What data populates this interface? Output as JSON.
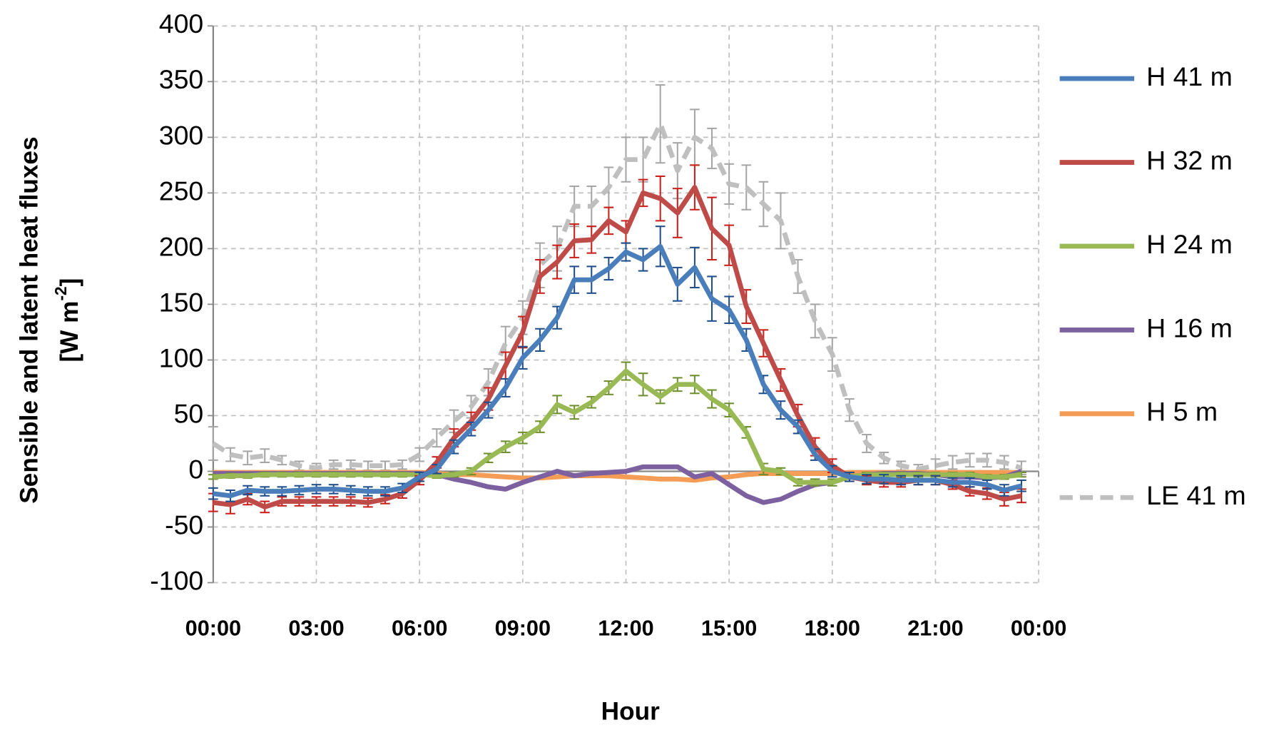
{
  "chart_data": {
    "type": "line",
    "ylabel": "Sensible and latent heat fluxes",
    "ylabel_line2": [
      "[W m",
      "-2",
      "]"
    ],
    "xlabel": "Hour",
    "x": [
      0,
      0.5,
      1,
      1.5,
      2,
      2.5,
      3,
      3.5,
      4,
      4.5,
      5,
      5.5,
      6,
      6.5,
      7,
      7.5,
      8,
      8.5,
      9,
      9.5,
      10,
      10.5,
      11,
      11.5,
      12,
      12.5,
      13,
      13.5,
      14,
      14.5,
      15,
      15.5,
      16,
      16.5,
      17,
      17.5,
      18,
      18.5,
      19,
      19.5,
      20,
      20.5,
      21,
      21.5,
      22,
      22.5,
      23,
      23.5
    ],
    "xlim": [
      0,
      24
    ],
    "xticks": [
      {
        "value": 0,
        "label": "00:00"
      },
      {
        "value": 3,
        "label": "03:00"
      },
      {
        "value": 6,
        "label": "06:00"
      },
      {
        "value": 9,
        "label": "09:00"
      },
      {
        "value": 12,
        "label": "12:00"
      },
      {
        "value": 15,
        "label": "15:00"
      },
      {
        "value": 18,
        "label": "18:00"
      },
      {
        "value": 21,
        "label": "21:00"
      },
      {
        "value": 24,
        "label": "00:00"
      }
    ],
    "ylim": [
      -100,
      400
    ],
    "yticks": [
      -100,
      -50,
      0,
      50,
      100,
      150,
      200,
      250,
      300,
      350,
      400
    ],
    "grid": true,
    "legend": "right",
    "series": [
      {
        "name": "H 41 m",
        "color": "#4a7ebb",
        "error_color": "#1f4e8c",
        "values": [
          -20,
          -22,
          -17,
          -18,
          -18,
          -17,
          -16,
          -16,
          -17,
          -18,
          -18,
          -15,
          -5,
          2,
          22,
          38,
          55,
          75,
          102,
          118,
          138,
          172,
          172,
          182,
          197,
          190,
          202,
          168,
          183,
          155,
          145,
          118,
          78,
          55,
          40,
          15,
          0,
          -5,
          -7,
          -7,
          -8,
          -8,
          -8,
          -10,
          -10,
          -12,
          -17,
          -13
        ],
        "errors": [
          5,
          5,
          4,
          4,
          4,
          4,
          4,
          4,
          4,
          4,
          4,
          4,
          4,
          4,
          6,
          6,
          7,
          8,
          10,
          10,
          10,
          12,
          12,
          10,
          8,
          10,
          18,
          15,
          18,
          20,
          12,
          10,
          8,
          8,
          6,
          5,
          5,
          4,
          4,
          4,
          4,
          4,
          4,
          4,
          4,
          4,
          5,
          5
        ]
      },
      {
        "name": "H 32 m",
        "color": "#be4b48",
        "error_color": "#cc1f1a",
        "values": [
          -28,
          -30,
          -25,
          -32,
          -27,
          -27,
          -27,
          -27,
          -27,
          -28,
          -25,
          -20,
          -8,
          8,
          30,
          45,
          65,
          95,
          125,
          175,
          188,
          207,
          208,
          225,
          215,
          250,
          245,
          232,
          255,
          218,
          203,
          148,
          115,
          82,
          50,
          22,
          5,
          -5,
          -8,
          -10,
          -10,
          -8,
          -8,
          -12,
          -18,
          -20,
          -25,
          -22
        ],
        "errors": [
          8,
          8,
          5,
          5,
          4,
          4,
          4,
          4,
          4,
          4,
          4,
          4,
          4,
          5,
          8,
          8,
          10,
          12,
          14,
          15,
          15,
          15,
          12,
          12,
          10,
          12,
          20,
          22,
          20,
          28,
          18,
          15,
          12,
          10,
          10,
          8,
          6,
          4,
          4,
          4,
          4,
          4,
          4,
          4,
          4,
          5,
          6,
          6
        ]
      },
      {
        "name": "H 24 m",
        "color": "#98b954",
        "error_color": "#6f8f2e",
        "values": [
          -5,
          -4,
          -4,
          -3,
          -3,
          -3,
          -3,
          -3,
          -3,
          -3,
          -3,
          -3,
          -3,
          -4,
          -3,
          0,
          12,
          22,
          30,
          40,
          60,
          53,
          62,
          75,
          90,
          78,
          67,
          78,
          78,
          65,
          55,
          35,
          2,
          0,
          -10,
          -10,
          -10,
          -5,
          -3,
          -3,
          -3,
          -3,
          -3,
          -3,
          -3,
          -5,
          -5,
          -3
        ],
        "errors": [
          2,
          2,
          2,
          2,
          2,
          2,
          2,
          2,
          2,
          2,
          2,
          2,
          2,
          2,
          2,
          3,
          4,
          5,
          5,
          5,
          8,
          6,
          5,
          6,
          8,
          10,
          6,
          6,
          8,
          8,
          6,
          5,
          5,
          3,
          3,
          3,
          3,
          2,
          2,
          2,
          2,
          2,
          2,
          2,
          2,
          2,
          2,
          2
        ]
      },
      {
        "name": "H 16 m",
        "color": "#7d60a0",
        "values": [
          -2,
          -2,
          -2,
          -2,
          -2,
          -2,
          -2,
          -2,
          -2,
          -2,
          -2,
          -2,
          -2,
          -3,
          -7,
          -10,
          -14,
          -16,
          -10,
          -5,
          0,
          -4,
          -2,
          -1,
          0,
          4,
          4,
          4,
          -5,
          -2,
          -12,
          -22,
          -28,
          -25,
          -18,
          -12,
          -10,
          -5,
          -3,
          -2,
          -2,
          -2,
          -3,
          -5,
          -5,
          -6,
          -5,
          0
        ]
      },
      {
        "name": "H 5 m",
        "color": "#f59d56",
        "values": [
          -1,
          -1,
          -1,
          -1,
          -1,
          -1,
          -1,
          -1,
          -1,
          -1,
          -1,
          -1,
          -1,
          -2,
          -3,
          -3,
          -4,
          -5,
          -6,
          -6,
          -5,
          -4,
          -4,
          -4,
          -5,
          -6,
          -7,
          -7,
          -8,
          -6,
          -5,
          -3,
          -2,
          -2,
          -2,
          -2,
          -2,
          -1,
          -1,
          -1,
          -1,
          -1,
          -1,
          -1,
          -1,
          -1,
          -1,
          -1
        ]
      },
      {
        "name": "LE 41 m",
        "color": "#bfbfbf",
        "error_color": "#a6a6a6",
        "dashed": true,
        "values": [
          25,
          15,
          12,
          14,
          10,
          5,
          3,
          6,
          6,
          5,
          5,
          6,
          15,
          30,
          45,
          58,
          80,
          115,
          138,
          185,
          200,
          238,
          238,
          255,
          280,
          280,
          312,
          270,
          300,
          290,
          258,
          255,
          240,
          225,
          175,
          135,
          105,
          55,
          25,
          12,
          5,
          2,
          5,
          8,
          10,
          10,
          8,
          3
        ],
        "errors": [
          15,
          6,
          6,
          6,
          4,
          4,
          4,
          4,
          4,
          4,
          4,
          4,
          6,
          8,
          10,
          10,
          12,
          15,
          15,
          20,
          20,
          18,
          18,
          18,
          20,
          20,
          35,
          25,
          25,
          18,
          18,
          20,
          20,
          25,
          15,
          15,
          15,
          10,
          8,
          5,
          4,
          4,
          6,
          6,
          6,
          6,
          6,
          6
        ]
      }
    ]
  }
}
